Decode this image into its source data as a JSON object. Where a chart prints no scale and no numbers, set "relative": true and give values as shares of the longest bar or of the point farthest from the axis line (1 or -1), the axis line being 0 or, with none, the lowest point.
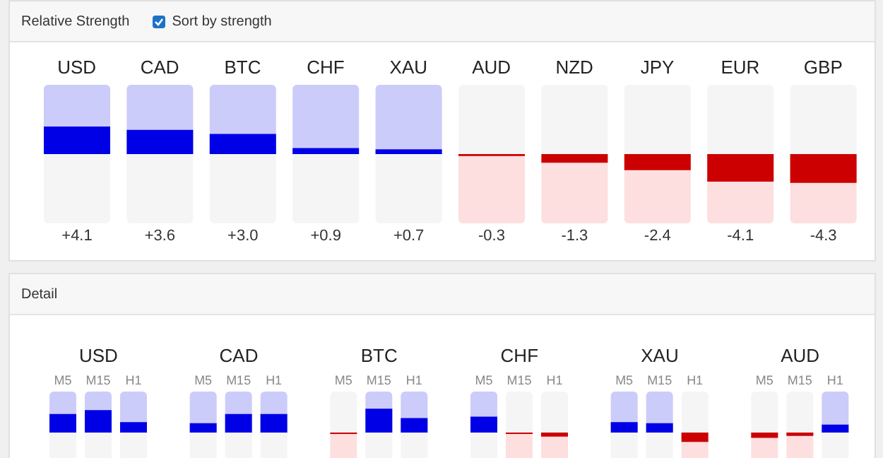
{
  "chart_data": [
    {
      "type": "bar",
      "title": "Relative Strength",
      "annotations": [
        "Sort by strength"
      ],
      "categories": [
        "USD",
        "CAD",
        "BTC",
        "CHF",
        "XAU",
        "AUD",
        "NZD",
        "JPY",
        "EUR",
        "GBP"
      ],
      "values": [
        4.1,
        3.6,
        3.0,
        0.9,
        0.7,
        -0.3,
        -1.3,
        -2.4,
        -4.1,
        -4.3
      ],
      "value_labels": [
        "+4.1",
        "+3.6",
        "+3.0",
        "+0.9",
        "+0.7",
        "-0.3",
        "-1.3",
        "-2.4",
        "-4.1",
        "-4.3"
      ],
      "colors": [
        "#0000e6",
        "#0000e6",
        "#0000e6",
        "#0000e6",
        "#0000e6",
        "#cc0000",
        "#cc0000",
        "#cc0000",
        "#cc0000",
        "#cc0000"
      ],
      "legend": false
    },
    {
      "type": "bar",
      "title": "Detail",
      "relative": true,
      "categories": [
        "USD",
        "CAD",
        "BTC",
        "CHF",
        "XAU",
        "AUD"
      ],
      "series": [
        {
          "name": "M5",
          "values": [
            0.78,
            0.39,
            -0.06,
            0.67,
            0.44,
            -0.22
          ],
          "colors": [
            "#0000e6",
            "#0000e6",
            "#cc0000",
            "#0000e6",
            "#0000e6",
            "#cc0000"
          ]
        },
        {
          "name": "M15",
          "values": [
            0.94,
            0.78,
            1,
            -0.06,
            0.39,
            -0.14
          ],
          "colors": [
            "#0000e6",
            "#0000e6",
            "#0000e6",
            "#cc0000",
            "#0000e6",
            "#cc0000"
          ]
        },
        {
          "name": "H1",
          "values": [
            0.44,
            0.78,
            0.61,
            -0.17,
            -0.39,
            0.33
          ],
          "colors": [
            "#0000e6",
            "#0000e6",
            "#0000e6",
            "#cc0000",
            "#cc0000",
            "#0000e6"
          ]
        }
      ],
      "legend": false
    }
  ]
}
